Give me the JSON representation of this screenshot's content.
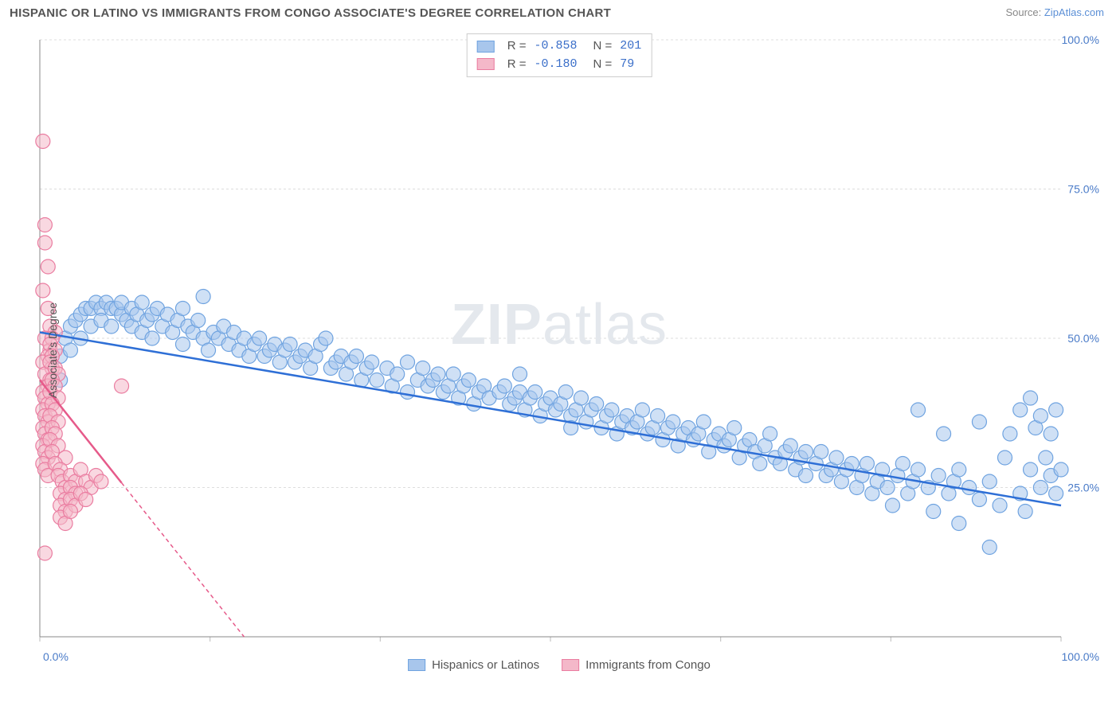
{
  "title": "HISPANIC OR LATINO VS IMMIGRANTS FROM CONGO ASSOCIATE'S DEGREE CORRELATION CHART",
  "source_label": "Source: ",
  "source_name": "ZipAtlas.com",
  "watermark_a": "ZIP",
  "watermark_b": "atlas",
  "chart": {
    "type": "scatter",
    "xlim": [
      0,
      100
    ],
    "ylim": [
      0,
      100
    ],
    "x_ticks": [
      0,
      16.67,
      33.33,
      50,
      66.67,
      83.33,
      100
    ],
    "y_ticks": [
      25,
      50,
      75,
      100
    ],
    "y_tick_labels": [
      "25.0%",
      "50.0%",
      "75.0%",
      "100.0%"
    ],
    "x_end_labels": [
      "0.0%",
      "100.0%"
    ],
    "grid_color": "#dddddd",
    "axis_color": "#888888",
    "tick_color": "#bbbbbb",
    "background_color": "#ffffff",
    "ylabel": "Associate's Degree",
    "marker_radius": 9,
    "marker_stroke_width": 1.2,
    "trendline_width": 2.5,
    "series": [
      {
        "name": "Hispanics or Latinos",
        "fill": "#a8c6ec",
        "stroke": "#6fa3e0",
        "fill_opacity": 0.55,
        "trend_color": "#2e6fd6",
        "trend_dash": "none",
        "trend": {
          "x1": 0,
          "y1": 51,
          "x2": 100,
          "y2": 22
        },
        "R": "-0.858",
        "N": "201",
        "points": [
          [
            2,
            43
          ],
          [
            2,
            47
          ],
          [
            2.5,
            50
          ],
          [
            3,
            52
          ],
          [
            3,
            48
          ],
          [
            3.5,
            53
          ],
          [
            4,
            54
          ],
          [
            4,
            50
          ],
          [
            4.5,
            55
          ],
          [
            5,
            55
          ],
          [
            5,
            52
          ],
          [
            5.5,
            56
          ],
          [
            6,
            55
          ],
          [
            6,
            53
          ],
          [
            6.5,
            56
          ],
          [
            7,
            55
          ],
          [
            7,
            52
          ],
          [
            7.5,
            55
          ],
          [
            8,
            54
          ],
          [
            8,
            56
          ],
          [
            8.5,
            53
          ],
          [
            9,
            55
          ],
          [
            9,
            52
          ],
          [
            9.5,
            54
          ],
          [
            10,
            56
          ],
          [
            10,
            51
          ],
          [
            10.5,
            53
          ],
          [
            11,
            54
          ],
          [
            11,
            50
          ],
          [
            11.5,
            55
          ],
          [
            12,
            52
          ],
          [
            12.5,
            54
          ],
          [
            13,
            51
          ],
          [
            13.5,
            53
          ],
          [
            14,
            55
          ],
          [
            14,
            49
          ],
          [
            14.5,
            52
          ],
          [
            15,
            51
          ],
          [
            15.5,
            53
          ],
          [
            16,
            50
          ],
          [
            16,
            57
          ],
          [
            16.5,
            48
          ],
          [
            17,
            51
          ],
          [
            17.5,
            50
          ],
          [
            18,
            52
          ],
          [
            18.5,
            49
          ],
          [
            19,
            51
          ],
          [
            19.5,
            48
          ],
          [
            20,
            50
          ],
          [
            20.5,
            47
          ],
          [
            21,
            49
          ],
          [
            21.5,
            50
          ],
          [
            22,
            47
          ],
          [
            22.5,
            48
          ],
          [
            23,
            49
          ],
          [
            23.5,
            46
          ],
          [
            24,
            48
          ],
          [
            24.5,
            49
          ],
          [
            25,
            46
          ],
          [
            25.5,
            47
          ],
          [
            26,
            48
          ],
          [
            26.5,
            45
          ],
          [
            27,
            47
          ],
          [
            27.5,
            49
          ],
          [
            28,
            50
          ],
          [
            28.5,
            45
          ],
          [
            29,
            46
          ],
          [
            29.5,
            47
          ],
          [
            30,
            44
          ],
          [
            30.5,
            46
          ],
          [
            31,
            47
          ],
          [
            31.5,
            43
          ],
          [
            32,
            45
          ],
          [
            32.5,
            46
          ],
          [
            33,
            43
          ],
          [
            34,
            45
          ],
          [
            34.5,
            42
          ],
          [
            35,
            44
          ],
          [
            36,
            46
          ],
          [
            36,
            41
          ],
          [
            37,
            43
          ],
          [
            37.5,
            45
          ],
          [
            38,
            42
          ],
          [
            38.5,
            43
          ],
          [
            39,
            44
          ],
          [
            39.5,
            41
          ],
          [
            40,
            42
          ],
          [
            40.5,
            44
          ],
          [
            41,
            40
          ],
          [
            41.5,
            42
          ],
          [
            42,
            43
          ],
          [
            42.5,
            39
          ],
          [
            43,
            41
          ],
          [
            43.5,
            42
          ],
          [
            44,
            40
          ],
          [
            45,
            41
          ],
          [
            45.5,
            42
          ],
          [
            46,
            39
          ],
          [
            46.5,
            40
          ],
          [
            47,
            41
          ],
          [
            47,
            44
          ],
          [
            47.5,
            38
          ],
          [
            48,
            40
          ],
          [
            48.5,
            41
          ],
          [
            49,
            37
          ],
          [
            49.5,
            39
          ],
          [
            50,
            40
          ],
          [
            50.5,
            38
          ],
          [
            51,
            39
          ],
          [
            51.5,
            41
          ],
          [
            52,
            37
          ],
          [
            52,
            35
          ],
          [
            52.5,
            38
          ],
          [
            53,
            40
          ],
          [
            53.5,
            36
          ],
          [
            54,
            38
          ],
          [
            54.5,
            39
          ],
          [
            55,
            35
          ],
          [
            55.5,
            37
          ],
          [
            56,
            38
          ],
          [
            56.5,
            34
          ],
          [
            57,
            36
          ],
          [
            57.5,
            37
          ],
          [
            58,
            35
          ],
          [
            58.5,
            36
          ],
          [
            59,
            38
          ],
          [
            59.5,
            34
          ],
          [
            60,
            35
          ],
          [
            60.5,
            37
          ],
          [
            61,
            33
          ],
          [
            61.5,
            35
          ],
          [
            62,
            36
          ],
          [
            62.5,
            32
          ],
          [
            63,
            34
          ],
          [
            63.5,
            35
          ],
          [
            64,
            33
          ],
          [
            64.5,
            34
          ],
          [
            65,
            36
          ],
          [
            65.5,
            31
          ],
          [
            66,
            33
          ],
          [
            66.5,
            34
          ],
          [
            67,
            32
          ],
          [
            67.5,
            33
          ],
          [
            68,
            35
          ],
          [
            68.5,
            30
          ],
          [
            69,
            32
          ],
          [
            69.5,
            33
          ],
          [
            70,
            31
          ],
          [
            70.5,
            29
          ],
          [
            71,
            32
          ],
          [
            71.5,
            34
          ],
          [
            72,
            30
          ],
          [
            72.5,
            29
          ],
          [
            73,
            31
          ],
          [
            73.5,
            32
          ],
          [
            74,
            28
          ],
          [
            74.5,
            30
          ],
          [
            75,
            31
          ],
          [
            75,
            27
          ],
          [
            76,
            29
          ],
          [
            76.5,
            31
          ],
          [
            77,
            27
          ],
          [
            77.5,
            28
          ],
          [
            78,
            30
          ],
          [
            78.5,
            26
          ],
          [
            79,
            28
          ],
          [
            79.5,
            29
          ],
          [
            80,
            25
          ],
          [
            80.5,
            27
          ],
          [
            81,
            29
          ],
          [
            81.5,
            24
          ],
          [
            82,
            26
          ],
          [
            82.5,
            28
          ],
          [
            83,
            25
          ],
          [
            83.5,
            22
          ],
          [
            84,
            27
          ],
          [
            84.5,
            29
          ],
          [
            85,
            24
          ],
          [
            85.5,
            26
          ],
          [
            86,
            28
          ],
          [
            86,
            38
          ],
          [
            87,
            25
          ],
          [
            87.5,
            21
          ],
          [
            88,
            27
          ],
          [
            88.5,
            34
          ],
          [
            89,
            24
          ],
          [
            89.5,
            26
          ],
          [
            90,
            28
          ],
          [
            90,
            19
          ],
          [
            91,
            25
          ],
          [
            92,
            23
          ],
          [
            92,
            36
          ],
          [
            93,
            26
          ],
          [
            93,
            15
          ],
          [
            94,
            22
          ],
          [
            94.5,
            30
          ],
          [
            95,
            34
          ],
          [
            96,
            24
          ],
          [
            96,
            38
          ],
          [
            96.5,
            21
          ],
          [
            97,
            28
          ],
          [
            97,
            40
          ],
          [
            97.5,
            35
          ],
          [
            98,
            25
          ],
          [
            98,
            37
          ],
          [
            98.5,
            30
          ],
          [
            99,
            27
          ],
          [
            99,
            34
          ],
          [
            99.5,
            24
          ],
          [
            99.5,
            38
          ],
          [
            100,
            28
          ]
        ]
      },
      {
        "name": "Immigrants from Congo",
        "fill": "#f4b8c9",
        "stroke": "#ea7ca0",
        "fill_opacity": 0.55,
        "trend_color": "#e65a8a",
        "trend_dash": "5,4",
        "trend_solid_until": 8,
        "trend": {
          "x1": 0,
          "y1": 43,
          "x2": 20,
          "y2": 0
        },
        "R": "-0.180",
        "N": " 79",
        "points": [
          [
            0.3,
            83
          ],
          [
            0.5,
            69
          ],
          [
            0.5,
            66
          ],
          [
            0.8,
            62
          ],
          [
            0.3,
            58
          ],
          [
            0.8,
            55
          ],
          [
            1,
            52
          ],
          [
            0.5,
            50
          ],
          [
            1,
            48
          ],
          [
            0.8,
            47
          ],
          [
            0.3,
            46
          ],
          [
            1.2,
            45
          ],
          [
            0.5,
            44
          ],
          [
            1,
            43
          ],
          [
            1.5,
            51
          ],
          [
            0.8,
            42
          ],
          [
            1.2,
            50
          ],
          [
            0.3,
            41
          ],
          [
            1,
            49
          ],
          [
            0.5,
            40
          ],
          [
            1.5,
            48
          ],
          [
            0.8,
            39
          ],
          [
            1.2,
            47
          ],
          [
            0.3,
            38
          ],
          [
            1,
            46
          ],
          [
            1.5,
            45
          ],
          [
            0.5,
            37
          ],
          [
            1.8,
            44
          ],
          [
            0.8,
            36
          ],
          [
            1.2,
            43
          ],
          [
            0.3,
            35
          ],
          [
            1.5,
            42
          ],
          [
            0.5,
            34
          ],
          [
            1,
            41
          ],
          [
            1.8,
            40
          ],
          [
            0.8,
            33
          ],
          [
            1.2,
            39
          ],
          [
            0.3,
            32
          ],
          [
            1.5,
            38
          ],
          [
            0.5,
            31
          ],
          [
            1,
            37
          ],
          [
            1.8,
            36
          ],
          [
            0.8,
            30
          ],
          [
            1.2,
            35
          ],
          [
            0.3,
            29
          ],
          [
            1.5,
            34
          ],
          [
            0.5,
            28
          ],
          [
            1,
            33
          ],
          [
            1.8,
            32
          ],
          [
            0.8,
            27
          ],
          [
            1.2,
            31
          ],
          [
            2.5,
            30
          ],
          [
            1.5,
            29
          ],
          [
            2,
            28
          ],
          [
            1.8,
            27
          ],
          [
            2.2,
            26
          ],
          [
            2.5,
            25
          ],
          [
            3,
            27
          ],
          [
            2,
            24
          ],
          [
            3.5,
            26
          ],
          [
            2.5,
            23
          ],
          [
            3,
            25
          ],
          [
            4,
            28
          ],
          [
            2,
            22
          ],
          [
            3.5,
            24
          ],
          [
            4.5,
            26
          ],
          [
            2.5,
            21
          ],
          [
            3,
            23
          ],
          [
            5,
            25
          ],
          [
            8,
            42
          ],
          [
            2,
            20
          ],
          [
            3.5,
            22
          ],
          [
            4,
            24
          ],
          [
            5.5,
            27
          ],
          [
            0.5,
            14
          ],
          [
            2.5,
            19
          ],
          [
            3,
            21
          ],
          [
            4.5,
            23
          ],
          [
            6,
            26
          ]
        ]
      }
    ]
  },
  "legend_top": {
    "r_label": "R =",
    "n_label": "N ="
  }
}
